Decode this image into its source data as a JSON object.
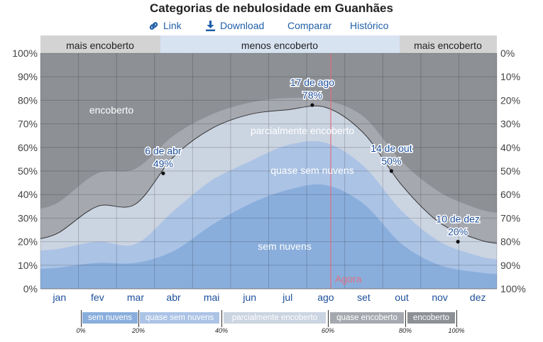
{
  "title": "Categorias de nebulosidade em Guanhães",
  "toolbar": {
    "link_label": "Link",
    "download_label": "Download",
    "compare_label": "Comparar",
    "history_label": "Histórico"
  },
  "bands": [
    {
      "label": "mais encoberto"
    },
    {
      "label": "menos encoberto"
    },
    {
      "label": "mais encoberto"
    }
  ],
  "now_label": "Agora",
  "colors": {
    "sem_nuvens": "#8aaedc",
    "quase_sem_nuvens": "#abc3e5",
    "parcialmente_encoberto": "#cbd4e1",
    "quase_encoberto": "#a5a9af",
    "encoberto": "#8d9095",
    "now_line": "#e07080",
    "annotation": "#1d4f9a"
  },
  "legend": {
    "items": [
      {
        "label": "sem nuvens"
      },
      {
        "label": "quase sem nuvens"
      },
      {
        "label": "parcialmente encoberto"
      },
      {
        "label": "quase encoberto"
      },
      {
        "label": "encoberto"
      }
    ],
    "ticks": [
      "0%",
      "20%",
      "40%",
      "60%",
      "80%",
      "100%"
    ]
  },
  "chart_data": {
    "type": "area",
    "title": "Categorias de nebulosidade em Guanhães",
    "x": [
      "jan",
      "fev",
      "mar",
      "abr",
      "mai",
      "jun",
      "jul",
      "ago",
      "set",
      "out",
      "nov",
      "dez"
    ],
    "x_tick_labels": [
      "jan",
      "fev",
      "mar",
      "abr",
      "mai",
      "jun",
      "jul",
      "ago",
      "set",
      "out",
      "nov",
      "dez"
    ],
    "ylim": [
      0,
      100
    ],
    "y_left_ticks": [
      "0%",
      "10%",
      "20%",
      "30%",
      "40%",
      "50%",
      "60%",
      "70%",
      "80%",
      "90%",
      "100%"
    ],
    "y_right_ticks": [
      "100%",
      "90%",
      "80%",
      "70%",
      "60%",
      "50%",
      "40%",
      "30%",
      "20%",
      "10%",
      "0%"
    ],
    "grid": true,
    "series": [
      {
        "name": "sem nuvens",
        "values": [
          9,
          11,
          11,
          16,
          27,
          36,
          42,
          44,
          36,
          19,
          10,
          7
        ]
      },
      {
        "name": "quase sem nuvens",
        "values": [
          17,
          20,
          19,
          33,
          46,
          54,
          61,
          62,
          52,
          33,
          20,
          14
        ]
      },
      {
        "name": "parcialmente encoberto",
        "values": [
          24,
          35,
          36,
          56,
          68,
          74,
          76,
          77,
          66,
          44,
          28,
          21
        ]
      },
      {
        "name": "quase encoberto",
        "values": [
          37,
          49,
          51,
          65,
          74,
          79,
          81,
          80,
          73,
          54,
          41,
          34
        ]
      },
      {
        "name": "encoberto",
        "values": [
          100,
          100,
          100,
          100,
          100,
          100,
          100,
          100,
          100,
          100,
          100,
          100
        ]
      }
    ],
    "annotations": [
      {
        "date": "6 de abr",
        "value": "49%",
        "month": "abr",
        "y": 49
      },
      {
        "date": "17 de ago",
        "value": "78%",
        "month": "ago",
        "y": 78
      },
      {
        "date": "14 de out",
        "value": "50%",
        "month": "out",
        "y": 50
      },
      {
        "date": "10 de dez",
        "value": "20%",
        "month": "dez",
        "y": 20
      }
    ],
    "area_labels": [
      "encoberto",
      "parcialmente encoberto",
      "quase sem nuvens",
      "sem nuvens"
    ],
    "now_month": "ago"
  }
}
